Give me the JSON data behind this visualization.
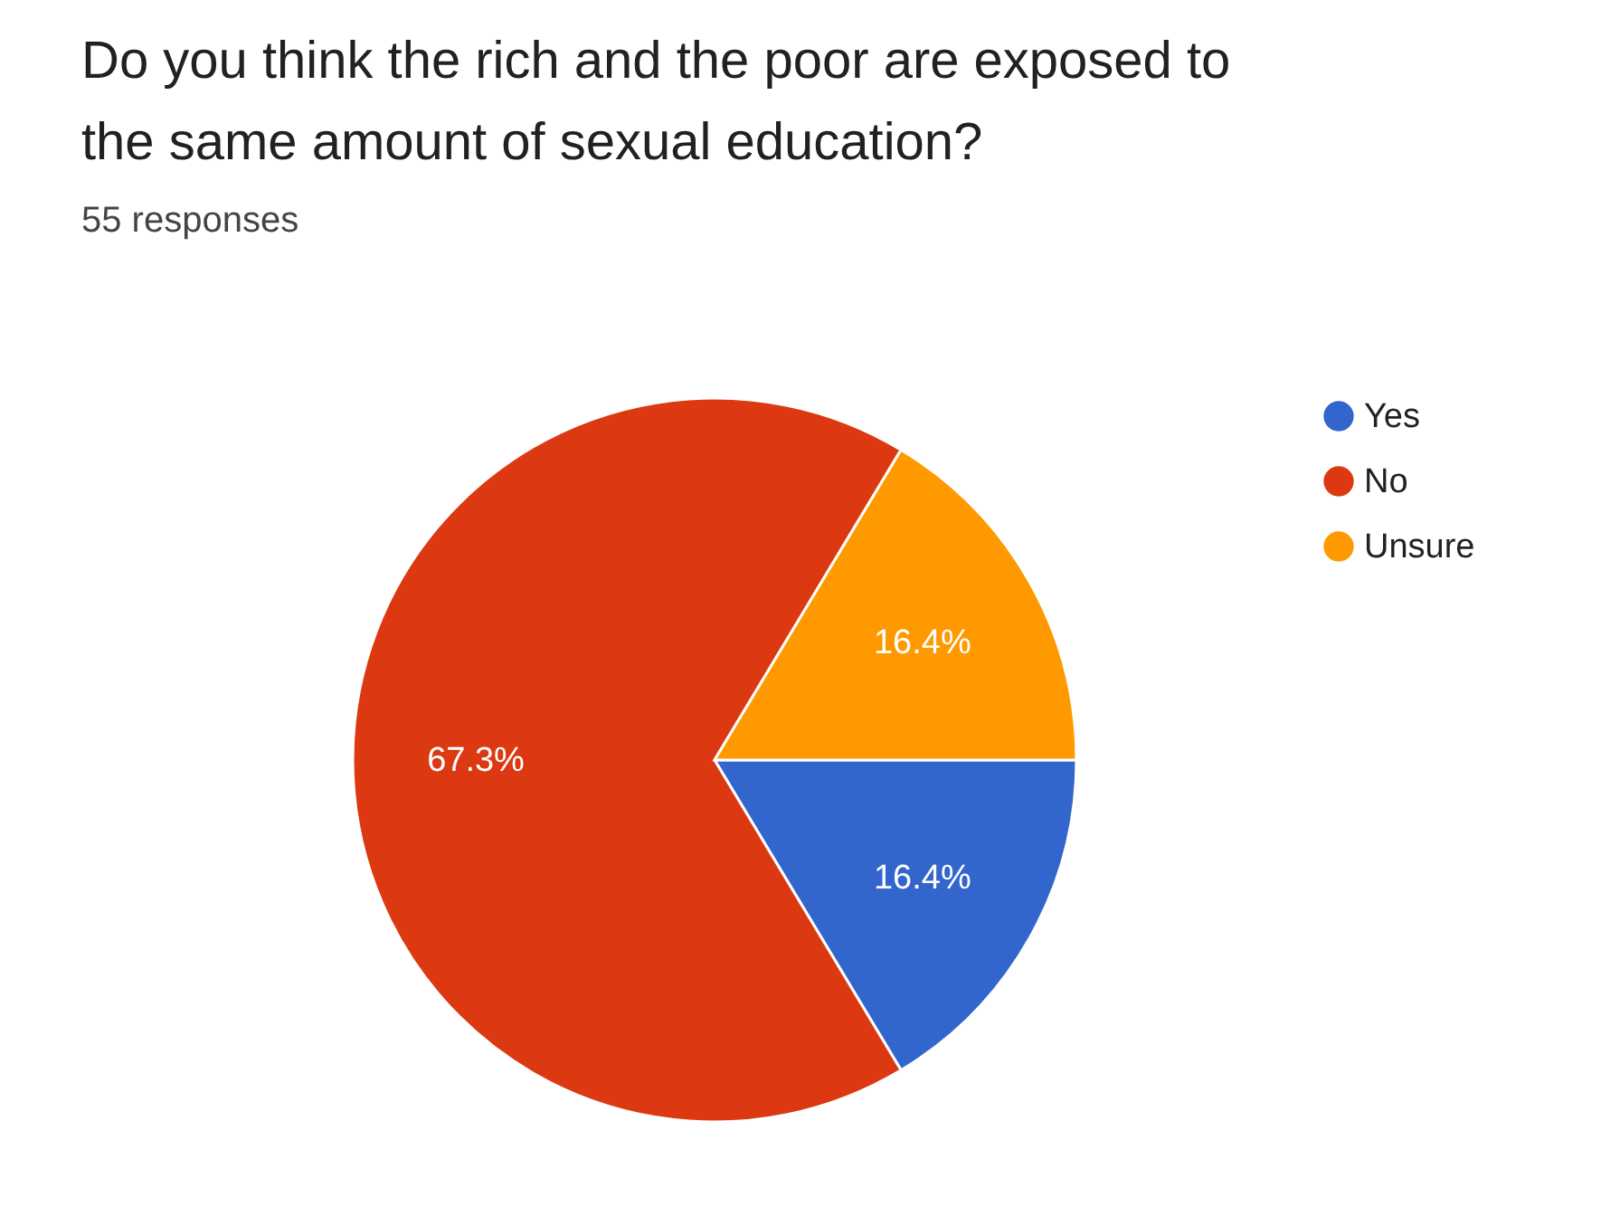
{
  "chart_data": {
    "type": "pie",
    "title": "Do you think the rich and the poor are exposed to the same amount of sexual education?",
    "subtitle": "55 responses",
    "categories": [
      "Yes",
      "No",
      "Unsure"
    ],
    "values": [
      16.4,
      67.3,
      16.4
    ],
    "colors": [
      "#3366cc",
      "#dc3912",
      "#ff9900"
    ],
    "value_labels": [
      "16.4%",
      "67.3%",
      "16.4%"
    ],
    "legend": "right"
  }
}
